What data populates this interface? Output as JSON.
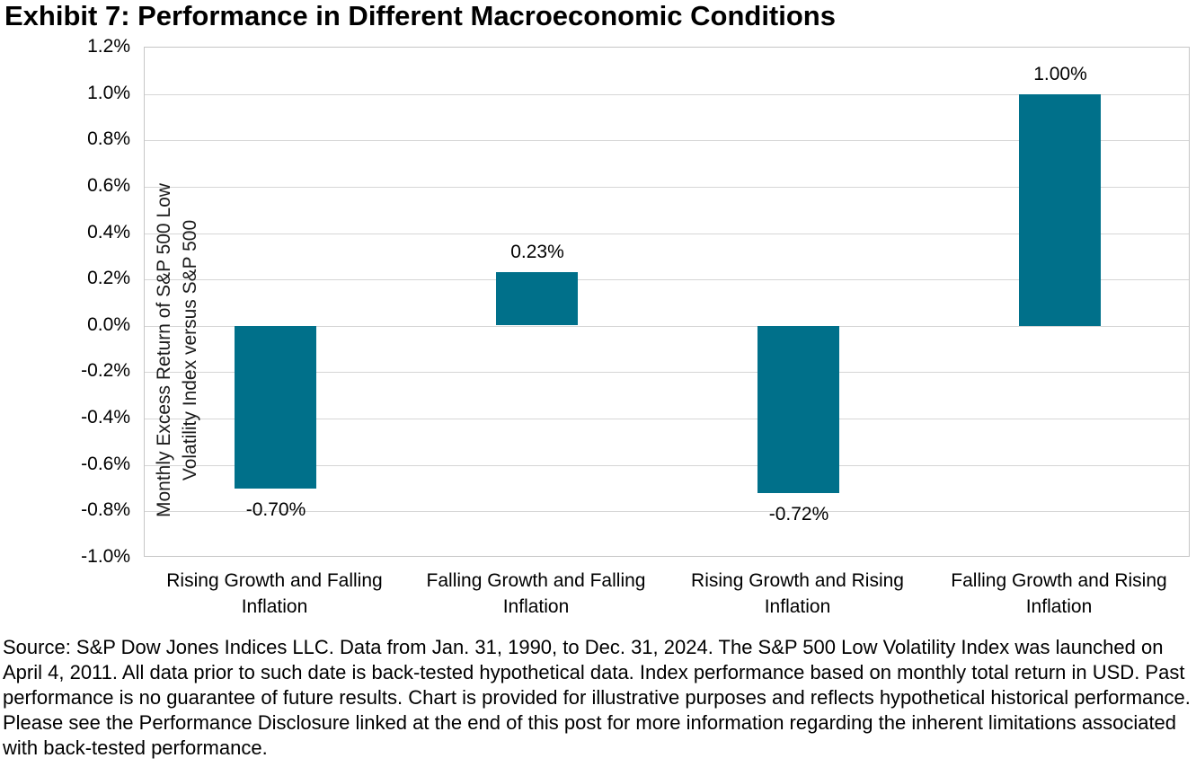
{
  "title": "Exhibit 7: Performance in Different Macroeconomic Conditions",
  "chart_data": {
    "type": "bar",
    "title": "Exhibit 7: Performance in Different Macroeconomic Conditions",
    "categories": [
      "Rising Growth and Falling Inflation",
      "Falling Growth and Falling Inflation",
      "Rising Growth and Rising Inflation",
      "Falling Growth and Rising Inflation"
    ],
    "values": [
      -0.7,
      0.23,
      -0.72,
      1.0
    ],
    "data_labels": [
      "-0.70%",
      "0.23%",
      "-0.72%",
      "1.00%"
    ],
    "xlabel": "",
    "ylabel": "Monthly Excess Return of S&P 500 Low Volatility Index versus S&P 500",
    "ylabel_lines": [
      "Monthly Excess Return of S&P 500 Low",
      "Volatility Index versus S&P 500"
    ],
    "ylim": [
      -1.0,
      1.2
    ],
    "ytick_step": 0.2,
    "ytick_labels": [
      "1.2%",
      "1.0%",
      "0.8%",
      "0.6%",
      "0.4%",
      "0.2%",
      "0.0%",
      "-0.2%",
      "-0.4%",
      "-0.6%",
      "-0.8%",
      "-1.0%"
    ],
    "grid": true,
    "legend": "none",
    "bar_color": "#00708a"
  },
  "source_note": "Source: S&P Dow Jones Indices LLC. Data from Jan. 31, 1990, to Dec. 31, 2024. The S&P 500 Low Volatility Index was launched on April 4, 2011. All data prior to such date is back-tested hypothetical data. Index performance based on monthly total return in USD. Past performance is no guarantee of future results. Chart is provided for illustrative purposes and reflects hypothetical historical performance. Please see the Performance Disclosure linked at the end of this post for more information regarding the inherent limitations associated with back-tested performance."
}
